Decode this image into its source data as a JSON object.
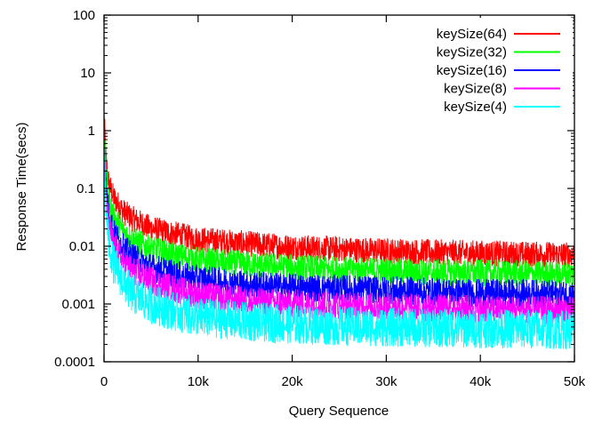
{
  "chart_data": {
    "type": "line",
    "title": "",
    "xlabel": "Query Sequence",
    "ylabel": "Response Time(secs)",
    "xlim": [
      0,
      50000
    ],
    "ylim": [
      0.0001,
      100
    ],
    "y_scale": "log",
    "grid": false,
    "legend_placement": "top-right",
    "x_ticks": [
      {
        "value": 0,
        "label": "0"
      },
      {
        "value": 10000,
        "label": "10k"
      },
      {
        "value": 20000,
        "label": "20k"
      },
      {
        "value": 30000,
        "label": "30k"
      },
      {
        "value": 40000,
        "label": "40k"
      },
      {
        "value": 50000,
        "label": "50k"
      }
    ],
    "y_ticks": [
      {
        "value": 0.0001,
        "label": "0.0001"
      },
      {
        "value": 0.001,
        "label": "0.001"
      },
      {
        "value": 0.01,
        "label": "0.01"
      },
      {
        "value": 0.1,
        "label": "0.1"
      },
      {
        "value": 1,
        "label": "1"
      },
      {
        "value": 10,
        "label": "10"
      },
      {
        "value": 100,
        "label": "100"
      }
    ],
    "x": [
      0,
      200,
      500,
      1000,
      2000,
      3000,
      5000,
      7500,
      10000,
      15000,
      20000,
      25000,
      30000,
      35000,
      40000,
      45000,
      50000
    ],
    "series": [
      {
        "name": "keySize(64)",
        "color": "#ff0000",
        "values": [
          2,
          0.3,
          0.12,
          0.07,
          0.04,
          0.03,
          0.02,
          0.016,
          0.013,
          0.011,
          0.0095,
          0.0088,
          0.0082,
          0.0078,
          0.0075,
          0.0072,
          0.007
        ],
        "noise_low_factor": 0.6,
        "noise_high_factor": 1.7
      },
      {
        "name": "keySize(32)",
        "color": "#00ff00",
        "values": [
          1.5,
          0.2,
          0.07,
          0.035,
          0.02,
          0.014,
          0.0095,
          0.0075,
          0.0062,
          0.0052,
          0.0046,
          0.0042,
          0.004,
          0.0038,
          0.0037,
          0.0036,
          0.0035
        ],
        "noise_low_factor": 0.55,
        "noise_high_factor": 1.6
      },
      {
        "name": "keySize(16)",
        "color": "#0000ff",
        "values": [
          1.2,
          0.12,
          0.04,
          0.018,
          0.01,
          0.0068,
          0.0045,
          0.0034,
          0.0028,
          0.0023,
          0.002,
          0.0019,
          0.0018,
          0.0017,
          0.0016,
          0.0016,
          0.0015
        ],
        "noise_low_factor": 0.55,
        "noise_high_factor": 1.7
      },
      {
        "name": "keySize(8)",
        "color": "#ff00ff",
        "values": [
          1,
          0.08,
          0.025,
          0.011,
          0.006,
          0.004,
          0.0026,
          0.0019,
          0.0015,
          0.0012,
          0.00105,
          0.00098,
          0.00092,
          0.00088,
          0.00085,
          0.00082,
          0.0008
        ],
        "noise_low_factor": 0.55,
        "noise_high_factor": 1.7
      },
      {
        "name": "keySize(4)",
        "color": "#00ffff",
        "values": [
          0.8,
          0.05,
          0.012,
          0.005,
          0.0025,
          0.0015,
          0.001,
          0.00075,
          0.0006,
          0.0005,
          0.00045,
          0.00042,
          0.0004,
          0.00039,
          0.00038,
          0.00037,
          0.00036
        ],
        "noise_low_factor": 0.45,
        "noise_high_factor": 2.2
      }
    ]
  }
}
